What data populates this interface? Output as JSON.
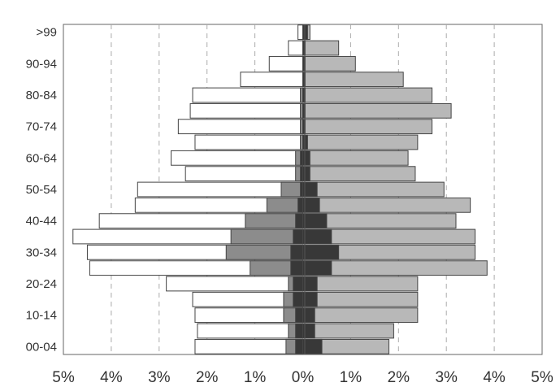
{
  "chart_data": {
    "type": "bar",
    "subtype": "population-pyramid",
    "title": "",
    "xlabel": "",
    "ylabel": "",
    "xlim": [
      -5,
      5
    ],
    "x_unit": "%",
    "x_ticks": [
      "5%",
      "4%",
      "3%",
      "2%",
      "1%",
      "0%",
      "1%",
      "2%",
      "3%",
      "4%",
      "5%"
    ],
    "y_tick_labels": [
      "00-04",
      "10-14",
      "20-24",
      "30-34",
      "40-44",
      "50-54",
      "60-64",
      "70-74",
      "80-84",
      "90-94",
      ">99"
    ],
    "grid": {
      "vertical": true,
      "horizontal": false,
      "style": "dashed"
    },
    "legend": "none",
    "n_groups": 21,
    "colors": {
      "left_outer": "#ffffff",
      "left_mid": "#8c8c8c",
      "left_inner": "#383838",
      "right_inner": "#383838",
      "right_outer": "#b8b8b8",
      "edge": "#444444",
      "grid": "#aaaaaa",
      "axis": "#555555"
    },
    "series": [
      {
        "side": "left",
        "layer": "outer",
        "values": [
          -2.25,
          -2.2,
          -2.25,
          -2.3,
          -2.85,
          -4.45,
          -4.5,
          -4.8,
          -4.25,
          -3.5,
          -3.45,
          -2.45,
          -2.75,
          -2.25,
          -2.6,
          -2.35,
          -2.3,
          -1.3,
          -0.7,
          -0.3,
          -0.1
        ]
      },
      {
        "side": "left",
        "layer": "mid",
        "values": [
          -0.35,
          -0.3,
          -0.4,
          -0.4,
          -0.3,
          -1.1,
          -1.6,
          -1.5,
          -1.2,
          -0.75,
          -0.45,
          -0.15,
          -0.15,
          -0.05,
          -0.05,
          -0.05,
          -0.05,
          0,
          0,
          0,
          0
        ]
      },
      {
        "side": "left",
        "layer": "inner",
        "values": [
          -0.15,
          -0.15,
          -0.15,
          -0.2,
          -0.2,
          -0.25,
          -0.25,
          -0.2,
          -0.15,
          -0.1,
          -0.05,
          -0.05,
          -0.05,
          0,
          0,
          0,
          0,
          0,
          0,
          0,
          0
        ]
      },
      {
        "side": "right",
        "layer": "inner",
        "values": [
          0.4,
          0.25,
          0.25,
          0.3,
          0.3,
          0.6,
          0.75,
          0.6,
          0.5,
          0.35,
          0.3,
          0.15,
          0.15,
          0.1,
          0.05,
          0.05,
          0.05,
          0.05,
          0.05,
          0.05,
          0.1
        ]
      },
      {
        "side": "right",
        "layer": "outer",
        "values": [
          1.8,
          1.9,
          2.4,
          2.4,
          2.4,
          3.85,
          3.6,
          3.6,
          3.2,
          3.5,
          2.95,
          2.35,
          2.2,
          2.4,
          2.7,
          3.1,
          2.7,
          2.1,
          1.1,
          0.75,
          0.15
        ]
      }
    ]
  }
}
